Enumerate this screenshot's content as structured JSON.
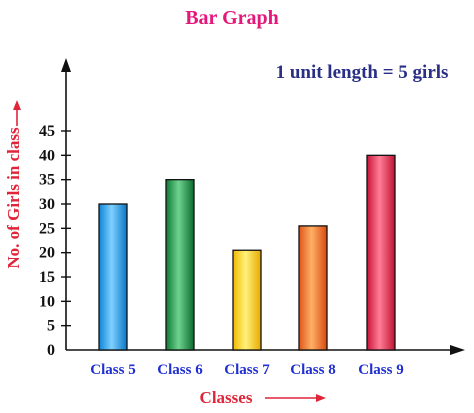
{
  "chart_data": {
    "type": "bar",
    "title": "Bar Graph",
    "annotation": "1 unit length = 5 girls",
    "xlabel": "Classes",
    "ylabel": "No. of Girls in class",
    "categories": [
      "Class 5",
      "Class 6",
      "Class 7",
      "Class 8",
      "Class 9"
    ],
    "values": [
      30,
      35,
      20.5,
      25.5,
      40
    ],
    "yticks": [
      "0",
      "5",
      "10",
      "15",
      "20",
      "25",
      "30",
      "35",
      "40",
      "45"
    ],
    "ylim": [
      0,
      45
    ],
    "grid": false,
    "colors": {
      "title": "#e5177b",
      "annotation": "#2a2f86",
      "axis_label": "#e0253a",
      "category_label": "#1f2fd1",
      "bars": [
        [
          "#0e84d8",
          "#7fd0ff",
          "#0a76c6"
        ],
        [
          "#0d7a35",
          "#6fd38f",
          "#0b6a2e"
        ],
        [
          "#f1b800",
          "#fff27a",
          "#e7a900"
        ],
        [
          "#e0561a",
          "#ffb066",
          "#d9480f"
        ],
        [
          "#c9153a",
          "#ff7d96",
          "#c01232"
        ]
      ]
    }
  }
}
